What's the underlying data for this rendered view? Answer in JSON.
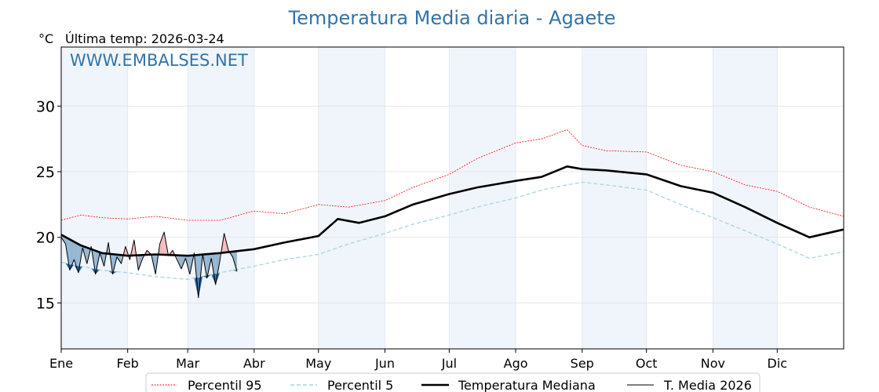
{
  "chart_data": {
    "type": "line",
    "title": "Temperatura Media diaria - Agaete",
    "unit_label": "°C",
    "last_temp_label": "Última temp: 2026-03-24",
    "watermark": "WWW.EMBALSES.NET",
    "ylim": [
      11.5,
      34.5
    ],
    "xlim": [
      1,
      366
    ],
    "yticks": [
      15,
      20,
      25,
      30
    ],
    "grid": true,
    "legend_position": "bottom-center",
    "months": [
      {
        "label": "Ene",
        "day": 1
      },
      {
        "label": "Feb",
        "day": 32
      },
      {
        "label": "Mar",
        "day": 60
      },
      {
        "label": "Abr",
        "day": 91
      },
      {
        "label": "May",
        "day": 121
      },
      {
        "label": "Jun",
        "day": 152
      },
      {
        "label": "Jul",
        "day": 182
      },
      {
        "label": "Ago",
        "day": 213
      },
      {
        "label": "Sep",
        "day": 244
      },
      {
        "label": "Oct",
        "day": 274
      },
      {
        "label": "Nov",
        "day": 305
      },
      {
        "label": "Dic",
        "day": 335
      }
    ],
    "colors": {
      "p95": "#ff0000",
      "p5": "#a8d4e6",
      "median": "#000000",
      "current": "#000000",
      "fill_above": "#f4b8b8",
      "fill_below": "#8fb3d1",
      "fill_below_p5": "#2e6aa8",
      "band": "#f0f5fb",
      "title": "#3274a8"
    },
    "series": [
      {
        "name": "Percentil 95",
        "key": "p95",
        "x": [
          1,
          10,
          20,
          32,
          45,
          60,
          75,
          91,
          105,
          121,
          135,
          152,
          165,
          182,
          195,
          213,
          225,
          237,
          244,
          255,
          274,
          290,
          305,
          320,
          335,
          350,
          366
        ],
        "y": [
          21.3,
          21.7,
          21.5,
          21.4,
          21.6,
          21.3,
          21.3,
          22.0,
          21.8,
          22.5,
          22.3,
          22.8,
          23.8,
          24.8,
          26.0,
          27.2,
          27.5,
          28.2,
          27.0,
          26.6,
          26.5,
          25.5,
          25.0,
          24.0,
          23.5,
          22.3,
          21.6
        ]
      },
      {
        "name": "Percentil 5",
        "key": "p5",
        "x": [
          1,
          10,
          20,
          32,
          45,
          60,
          75,
          91,
          105,
          121,
          135,
          152,
          165,
          182,
          195,
          213,
          225,
          237,
          244,
          255,
          274,
          290,
          305,
          320,
          335,
          350,
          366
        ],
        "y": [
          18.1,
          17.8,
          17.5,
          17.3,
          17.0,
          16.8,
          17.3,
          17.8,
          18.3,
          18.7,
          19.5,
          20.3,
          21.0,
          21.7,
          22.3,
          23.0,
          23.6,
          24.0,
          24.2,
          24.0,
          23.6,
          22.5,
          21.5,
          20.5,
          19.5,
          18.4,
          18.9
        ]
      },
      {
        "name": "Temperatura Mediana",
        "key": "median",
        "x": [
          1,
          10,
          20,
          32,
          45,
          60,
          75,
          91,
          105,
          121,
          130,
          140,
          152,
          165,
          182,
          195,
          213,
          225,
          237,
          244,
          255,
          274,
          290,
          305,
          320,
          335,
          350,
          366
        ],
        "y": [
          20.2,
          19.4,
          18.8,
          18.6,
          18.7,
          18.6,
          18.8,
          19.1,
          19.6,
          20.1,
          21.4,
          21.1,
          21.6,
          22.5,
          23.3,
          23.8,
          24.3,
          24.6,
          25.4,
          25.2,
          25.1,
          24.8,
          23.9,
          23.4,
          22.3,
          21.1,
          20.0,
          20.6
        ]
      },
      {
        "name": "T. Media 2026",
        "key": "current",
        "x": [
          1,
          3,
          5,
          7,
          9,
          11,
          13,
          15,
          17,
          19,
          21,
          23,
          25,
          27,
          29,
          31,
          33,
          35,
          37,
          39,
          41,
          43,
          45,
          47,
          49,
          51,
          53,
          55,
          57,
          59,
          61,
          63,
          65,
          67,
          69,
          71,
          73,
          75,
          77,
          79,
          81,
          83
        ],
        "y": [
          20.0,
          19.5,
          17.5,
          18.3,
          17.3,
          19.2,
          18.0,
          19.3,
          17.2,
          18.8,
          17.8,
          19.6,
          17.2,
          18.5,
          18.0,
          19.3,
          18.3,
          19.8,
          17.5,
          18.4,
          19.0,
          18.7,
          17.2,
          19.5,
          20.4,
          18.6,
          19.0,
          18.3,
          17.6,
          18.4,
          17.2,
          18.8,
          15.4,
          18.7,
          16.9,
          18.4,
          16.4,
          18.2,
          20.3,
          19.0,
          18.5,
          17.4
        ]
      }
    ]
  }
}
